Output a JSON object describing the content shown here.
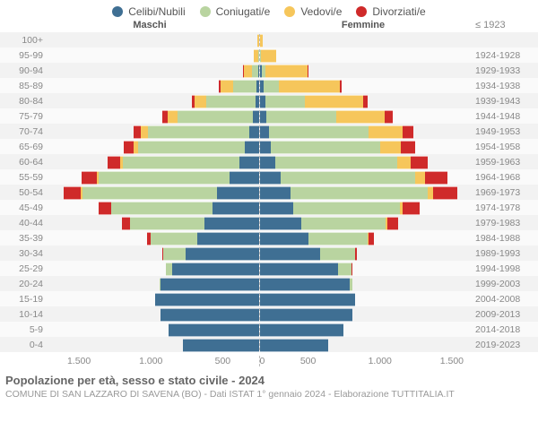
{
  "legend": {
    "items": [
      {
        "label": "Celibi/Nubili",
        "color": "#3f6f93"
      },
      {
        "label": "Coniugati/e",
        "color": "#b9d4a0"
      },
      {
        "label": "Vedovi/e",
        "color": "#f6c65b"
      },
      {
        "label": "Divorziati/e",
        "color": "#cf2a2a"
      }
    ]
  },
  "chart": {
    "type": "population-pyramid-stacked",
    "male_label": "Maschi",
    "female_label": "Femmine",
    "y_left_label": "Fasce di età",
    "y_right_label": "Anni di nascita",
    "x_max": 1500,
    "x_ticks": [
      0,
      500,
      1000,
      1500
    ],
    "x_tick_labels": [
      "0",
      "500",
      "1.000",
      "1.500"
    ],
    "categories": [
      "single",
      "married",
      "widowed",
      "divorced"
    ],
    "colors": {
      "single": "#3f6f93",
      "married": "#b9d4a0",
      "widowed": "#f6c65b",
      "divorced": "#cf2a2a"
    },
    "background_color": "#ffffff",
    "row_stripe_colors": [
      "#f2f2f2",
      "#fafafa"
    ],
    "grid_color": "#e0e0e0",
    "label_fontsize": 11,
    "tick_fontsize": 10.5,
    "right_top_label": "≤ 1923",
    "rows": [
      {
        "age": "100+",
        "year": "≤ 1923",
        "m": {
          "single": 0,
          "married": 0,
          "widowed": 10,
          "divorced": 0
        },
        "f": {
          "single": 0,
          "married": 0,
          "widowed": 25,
          "divorced": 0
        }
      },
      {
        "age": "95-99",
        "year": "1924-1928",
        "m": {
          "single": 0,
          "married": 5,
          "widowed": 30,
          "divorced": 0
        },
        "f": {
          "single": 5,
          "married": 5,
          "widowed": 110,
          "divorced": 0
        }
      },
      {
        "age": "90-94",
        "year": "1929-1933",
        "m": {
          "single": 5,
          "married": 40,
          "widowed": 60,
          "divorced": 5
        },
        "f": {
          "single": 15,
          "married": 25,
          "widowed": 300,
          "divorced": 5
        }
      },
      {
        "age": "85-89",
        "year": "1934-1938",
        "m": {
          "single": 15,
          "married": 170,
          "widowed": 90,
          "divorced": 10
        },
        "f": {
          "single": 30,
          "married": 110,
          "widowed": 430,
          "divorced": 15
        }
      },
      {
        "age": "80-84",
        "year": "1939-1943",
        "m": {
          "single": 25,
          "married": 350,
          "widowed": 80,
          "divorced": 20
        },
        "f": {
          "single": 40,
          "married": 280,
          "widowed": 420,
          "divorced": 30
        }
      },
      {
        "age": "75-79",
        "year": "1944-1948",
        "m": {
          "single": 40,
          "married": 540,
          "widowed": 70,
          "divorced": 35
        },
        "f": {
          "single": 50,
          "married": 500,
          "widowed": 340,
          "divorced": 60
        }
      },
      {
        "age": "70-74",
        "year": "1949-1953",
        "m": {
          "single": 70,
          "married": 720,
          "widowed": 50,
          "divorced": 55
        },
        "f": {
          "single": 70,
          "married": 710,
          "widowed": 240,
          "divorced": 80
        }
      },
      {
        "age": "65-69",
        "year": "1954-1958",
        "m": {
          "single": 100,
          "married": 760,
          "widowed": 30,
          "divorced": 70
        },
        "f": {
          "single": 80,
          "married": 780,
          "widowed": 150,
          "divorced": 100
        }
      },
      {
        "age": "60-64",
        "year": "1959-1963",
        "m": {
          "single": 140,
          "married": 830,
          "widowed": 20,
          "divorced": 90
        },
        "f": {
          "single": 110,
          "married": 870,
          "widowed": 100,
          "divorced": 120
        }
      },
      {
        "age": "55-59",
        "year": "1964-1968",
        "m": {
          "single": 210,
          "married": 930,
          "widowed": 15,
          "divorced": 110
        },
        "f": {
          "single": 150,
          "married": 960,
          "widowed": 70,
          "divorced": 160
        }
      },
      {
        "age": "50-54",
        "year": "1969-1973",
        "m": {
          "single": 300,
          "married": 960,
          "widowed": 10,
          "divorced": 120
        },
        "f": {
          "single": 220,
          "married": 980,
          "widowed": 40,
          "divorced": 170
        }
      },
      {
        "age": "45-49",
        "year": "1974-1978",
        "m": {
          "single": 330,
          "married": 720,
          "widowed": 5,
          "divorced": 90
        },
        "f": {
          "single": 240,
          "married": 760,
          "widowed": 20,
          "divorced": 120
        }
      },
      {
        "age": "40-44",
        "year": "1979-1983",
        "m": {
          "single": 390,
          "married": 530,
          "widowed": 0,
          "divorced": 55
        },
        "f": {
          "single": 300,
          "married": 600,
          "widowed": 10,
          "divorced": 80
        }
      },
      {
        "age": "35-39",
        "year": "1984-1988",
        "m": {
          "single": 440,
          "married": 330,
          "widowed": 0,
          "divorced": 25
        },
        "f": {
          "single": 350,
          "married": 420,
          "widowed": 5,
          "divorced": 40
        }
      },
      {
        "age": "30-34",
        "year": "1989-1993",
        "m": {
          "single": 520,
          "married": 160,
          "widowed": 0,
          "divorced": 10
        },
        "f": {
          "single": 430,
          "married": 250,
          "widowed": 0,
          "divorced": 15
        }
      },
      {
        "age": "25-29",
        "year": "1994-1998",
        "m": {
          "single": 620,
          "married": 45,
          "widowed": 0,
          "divorced": 0
        },
        "f": {
          "single": 560,
          "married": 95,
          "widowed": 0,
          "divorced": 5
        }
      },
      {
        "age": "20-24",
        "year": "1999-2003",
        "m": {
          "single": 700,
          "married": 5,
          "widowed": 0,
          "divorced": 0
        },
        "f": {
          "single": 640,
          "married": 20,
          "widowed": 0,
          "divorced": 0
        }
      },
      {
        "age": "15-19",
        "year": "2004-2008",
        "m": {
          "single": 740,
          "married": 0,
          "widowed": 0,
          "divorced": 0
        },
        "f": {
          "single": 680,
          "married": 0,
          "widowed": 0,
          "divorced": 0
        }
      },
      {
        "age": "10-14",
        "year": "2009-2013",
        "m": {
          "single": 700,
          "married": 0,
          "widowed": 0,
          "divorced": 0
        },
        "f": {
          "single": 660,
          "married": 0,
          "widowed": 0,
          "divorced": 0
        }
      },
      {
        "age": "5-9",
        "year": "2014-2018",
        "m": {
          "single": 640,
          "married": 0,
          "widowed": 0,
          "divorced": 0
        },
        "f": {
          "single": 600,
          "married": 0,
          "widowed": 0,
          "divorced": 0
        }
      },
      {
        "age": "0-4",
        "year": "2019-2023",
        "m": {
          "single": 540,
          "married": 0,
          "widowed": 0,
          "divorced": 0
        },
        "f": {
          "single": 490,
          "married": 0,
          "widowed": 0,
          "divorced": 0
        }
      }
    ]
  },
  "footer": {
    "title": "Popolazione per età, sesso e stato civile - 2024",
    "subtitle": "COMUNE DI SAN LAZZARO DI SAVENA (BO) - Dati ISTAT 1° gennaio 2024 - Elaborazione TUTTITALIA.IT"
  }
}
